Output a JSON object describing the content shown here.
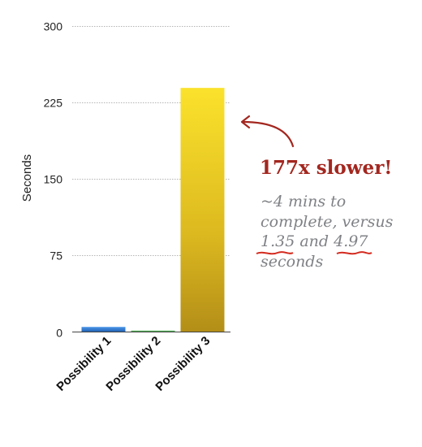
{
  "chart_data": {
    "type": "bar",
    "categories": [
      "Possibility 1",
      "Possibility 2",
      "Possibility 3"
    ],
    "values": [
      4.97,
      1.35,
      239
    ],
    "title": "",
    "xlabel": "",
    "ylabel": "Seconds",
    "ylim": [
      0,
      300
    ],
    "yticks": [
      0,
      75,
      150,
      225,
      300
    ],
    "grid": true,
    "colors": [
      "#2a73c9",
      "#43a047",
      "#e8c21d"
    ]
  },
  "annotation": {
    "headline": "177x slower!",
    "line1": "~4 mins to",
    "line2": "complete, versus",
    "value_a": "1.35",
    "conjunction": "and",
    "value_b": "4.97",
    "line4": "seconds",
    "arrow_color": "#a3271f",
    "underline_color": "#d42a1e"
  }
}
